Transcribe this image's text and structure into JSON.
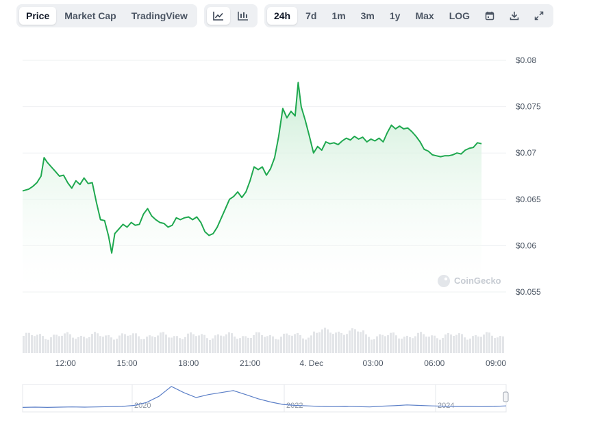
{
  "toolbar": {
    "view_tabs": [
      {
        "label": "Price",
        "active": true
      },
      {
        "label": "Market Cap",
        "active": false
      },
      {
        "label": "TradingView",
        "active": false
      }
    ],
    "chart_type_icons": [
      "line-chart-icon",
      "candlestick-icon"
    ],
    "ranges": [
      {
        "label": "24h",
        "active": true
      },
      {
        "label": "7d",
        "active": false
      },
      {
        "label": "1m",
        "active": false
      },
      {
        "label": "3m",
        "active": false
      },
      {
        "label": "1y",
        "active": false
      },
      {
        "label": "Max",
        "active": false
      },
      {
        "label": "LOG",
        "active": false
      }
    ],
    "action_icons": [
      "calendar-icon",
      "download-icon",
      "expand-icon"
    ]
  },
  "watermark": "CoinGecko",
  "colors": {
    "line": "#1fa84f",
    "area_top": "#c8ecd3",
    "volume": "#e3e5e8",
    "navigator_line": "#5b7fc7",
    "grid": "#eef0f2"
  },
  "chart_data": {
    "type": "area",
    "ylim": [
      0.055,
      0.08
    ],
    "yticks": [
      0.08,
      0.075,
      0.07,
      0.065,
      0.06,
      0.055
    ],
    "ytick_labels": [
      "$0.08",
      "$0.075",
      "$0.07",
      "$0.065",
      "$0.06",
      "$0.055"
    ],
    "xticks": [
      {
        "hour": 12,
        "label": "12:00"
      },
      {
        "hour": 15,
        "label": "15:00"
      },
      {
        "hour": 18,
        "label": "18:00"
      },
      {
        "hour": 21,
        "label": "21:00"
      },
      {
        "hour": 24,
        "label": "4. Dec"
      },
      {
        "hour": 27,
        "label": "03:00"
      },
      {
        "hour": 30,
        "label": "06:00"
      },
      {
        "hour": 33,
        "label": "09:00"
      }
    ],
    "xlim": [
      9.9,
      33.5
    ],
    "series": [
      {
        "values": [
          [
            9.9,
            0.0659
          ],
          [
            10.2,
            0.0661
          ],
          [
            10.4,
            0.0664
          ],
          [
            10.6,
            0.0668
          ],
          [
            10.8,
            0.0675
          ],
          [
            10.95,
            0.0695
          ],
          [
            11.1,
            0.069
          ],
          [
            11.3,
            0.0685
          ],
          [
            11.5,
            0.068
          ],
          [
            11.7,
            0.0675
          ],
          [
            11.9,
            0.0676
          ],
          [
            12.1,
            0.0668
          ],
          [
            12.3,
            0.0662
          ],
          [
            12.5,
            0.067
          ],
          [
            12.7,
            0.0666
          ],
          [
            12.9,
            0.0673
          ],
          [
            13.1,
            0.0667
          ],
          [
            13.3,
            0.0668
          ],
          [
            13.5,
            0.0647
          ],
          [
            13.7,
            0.0628
          ],
          [
            13.9,
            0.0627
          ],
          [
            14.1,
            0.061
          ],
          [
            14.25,
            0.0592
          ],
          [
            14.4,
            0.0613
          ],
          [
            14.6,
            0.0618
          ],
          [
            14.8,
            0.0623
          ],
          [
            15.0,
            0.062
          ],
          [
            15.2,
            0.0625
          ],
          [
            15.4,
            0.0622
          ],
          [
            15.6,
            0.0623
          ],
          [
            15.8,
            0.0634
          ],
          [
            16.0,
            0.064
          ],
          [
            16.2,
            0.0632
          ],
          [
            16.4,
            0.0628
          ],
          [
            16.6,
            0.0625
          ],
          [
            16.8,
            0.0624
          ],
          [
            17.0,
            0.062
          ],
          [
            17.2,
            0.0622
          ],
          [
            17.4,
            0.063
          ],
          [
            17.6,
            0.0628
          ],
          [
            17.8,
            0.063
          ],
          [
            18.0,
            0.0631
          ],
          [
            18.2,
            0.0628
          ],
          [
            18.4,
            0.0631
          ],
          [
            18.6,
            0.0625
          ],
          [
            18.8,
            0.0615
          ],
          [
            19.0,
            0.0611
          ],
          [
            19.2,
            0.0613
          ],
          [
            19.4,
            0.062
          ],
          [
            19.6,
            0.063
          ],
          [
            19.8,
            0.064
          ],
          [
            20.0,
            0.065
          ],
          [
            20.2,
            0.0653
          ],
          [
            20.4,
            0.0658
          ],
          [
            20.6,
            0.0652
          ],
          [
            20.8,
            0.0658
          ],
          [
            21.0,
            0.067
          ],
          [
            21.2,
            0.0685
          ],
          [
            21.4,
            0.0682
          ],
          [
            21.6,
            0.0685
          ],
          [
            21.8,
            0.0676
          ],
          [
            22.0,
            0.0683
          ],
          [
            22.2,
            0.0695
          ],
          [
            22.4,
            0.0718
          ],
          [
            22.6,
            0.0748
          ],
          [
            22.8,
            0.0738
          ],
          [
            23.0,
            0.0745
          ],
          [
            23.2,
            0.074
          ],
          [
            23.35,
            0.0776
          ],
          [
            23.5,
            0.075
          ],
          [
            23.7,
            0.0735
          ],
          [
            23.9,
            0.0718
          ],
          [
            24.1,
            0.07
          ],
          [
            24.3,
            0.0707
          ],
          [
            24.5,
            0.0703
          ],
          [
            24.7,
            0.0712
          ],
          [
            24.9,
            0.071
          ],
          [
            25.1,
            0.0711
          ],
          [
            25.3,
            0.0709
          ],
          [
            25.5,
            0.0713
          ],
          [
            25.7,
            0.0716
          ],
          [
            25.9,
            0.0714
          ],
          [
            26.1,
            0.0718
          ],
          [
            26.3,
            0.0715
          ],
          [
            26.5,
            0.0717
          ],
          [
            26.7,
            0.0712
          ],
          [
            26.9,
            0.0715
          ],
          [
            27.1,
            0.0713
          ],
          [
            27.3,
            0.0716
          ],
          [
            27.5,
            0.0712
          ],
          [
            27.7,
            0.0722
          ],
          [
            27.9,
            0.073
          ],
          [
            28.1,
            0.0726
          ],
          [
            28.3,
            0.0729
          ],
          [
            28.5,
            0.0726
          ],
          [
            28.7,
            0.0727
          ],
          [
            28.9,
            0.0723
          ],
          [
            29.1,
            0.0718
          ],
          [
            29.3,
            0.0712
          ],
          [
            29.5,
            0.0704
          ],
          [
            29.7,
            0.0702
          ],
          [
            29.9,
            0.0698
          ],
          [
            30.1,
            0.0697
          ],
          [
            30.3,
            0.0696
          ],
          [
            30.5,
            0.0697
          ],
          [
            30.7,
            0.0697
          ],
          [
            30.9,
            0.0698
          ],
          [
            31.1,
            0.07
          ],
          [
            31.3,
            0.0699
          ],
          [
            31.5,
            0.0703
          ],
          [
            31.7,
            0.0705
          ],
          [
            31.9,
            0.0706
          ],
          [
            32.1,
            0.0711
          ],
          [
            32.3,
            0.071
          ]
        ]
      }
    ]
  },
  "navigator": {
    "labels": [
      "2020",
      "2022",
      "2024"
    ],
    "history": [
      0.1,
      0.11,
      0.1,
      0.11,
      0.12,
      0.11,
      0.12,
      0.13,
      0.14,
      0.18,
      0.3,
      0.55,
      0.95,
      0.7,
      0.5,
      0.62,
      0.7,
      0.78,
      0.62,
      0.45,
      0.32,
      0.22,
      0.18,
      0.16,
      0.14,
      0.13,
      0.14,
      0.13,
      0.12,
      0.15,
      0.17,
      0.2,
      0.18,
      0.16,
      0.15,
      0.14,
      0.14,
      0.13,
      0.14,
      0.16
    ]
  }
}
